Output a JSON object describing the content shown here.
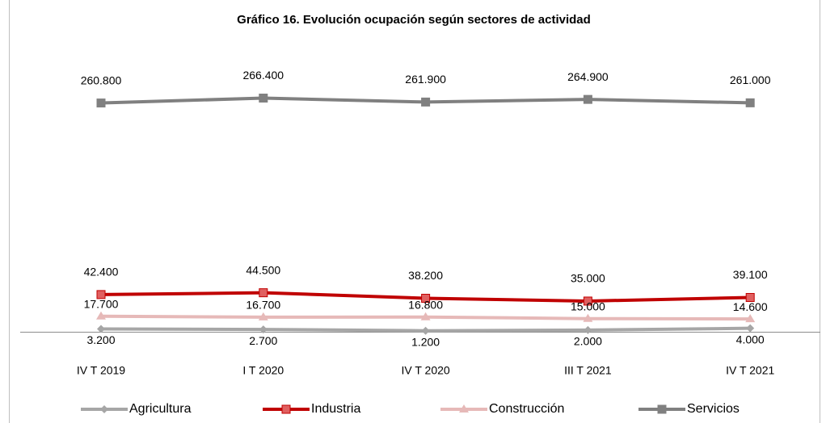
{
  "chart_data": {
    "type": "line",
    "title": "Gráfico 16. Evolución ocupación según sectores de actividad",
    "categories": [
      "IV T 2019",
      "I T 2020",
      "IV T 2020",
      "III T 2021",
      "IV T 2021"
    ],
    "ylim": [
      0,
      300000
    ],
    "legend": "bottom",
    "series": [
      {
        "name": "Agricultura",
        "color": "#a6a6a6",
        "marker": "diamond",
        "values": [
          3200,
          2700,
          1200,
          2000,
          4000
        ],
        "value_labels": [
          "3.200",
          "2.700",
          "1.200",
          "2.000",
          "4.000"
        ]
      },
      {
        "name": "Industria",
        "color": "#c00000",
        "marker": "square",
        "values": [
          42400,
          44500,
          38200,
          35000,
          39100
        ],
        "value_labels": [
          "42.400",
          "44.500",
          "38.200",
          "35.000",
          "39.100"
        ]
      },
      {
        "name": "Construcción",
        "color": "#e6b9b8",
        "marker": "triangle",
        "values": [
          17700,
          16700,
          16800,
          15000,
          14600
        ],
        "value_labels": [
          "17.700",
          "16.700",
          "16.800",
          "15.000",
          "14.600"
        ]
      },
      {
        "name": "Servicios",
        "color": "#808080",
        "marker": "square",
        "values": [
          260800,
          266400,
          261900,
          264900,
          261000
        ],
        "value_labels": [
          "260.800",
          "266.400",
          "261.900",
          "264.900",
          "261.000"
        ]
      }
    ]
  }
}
